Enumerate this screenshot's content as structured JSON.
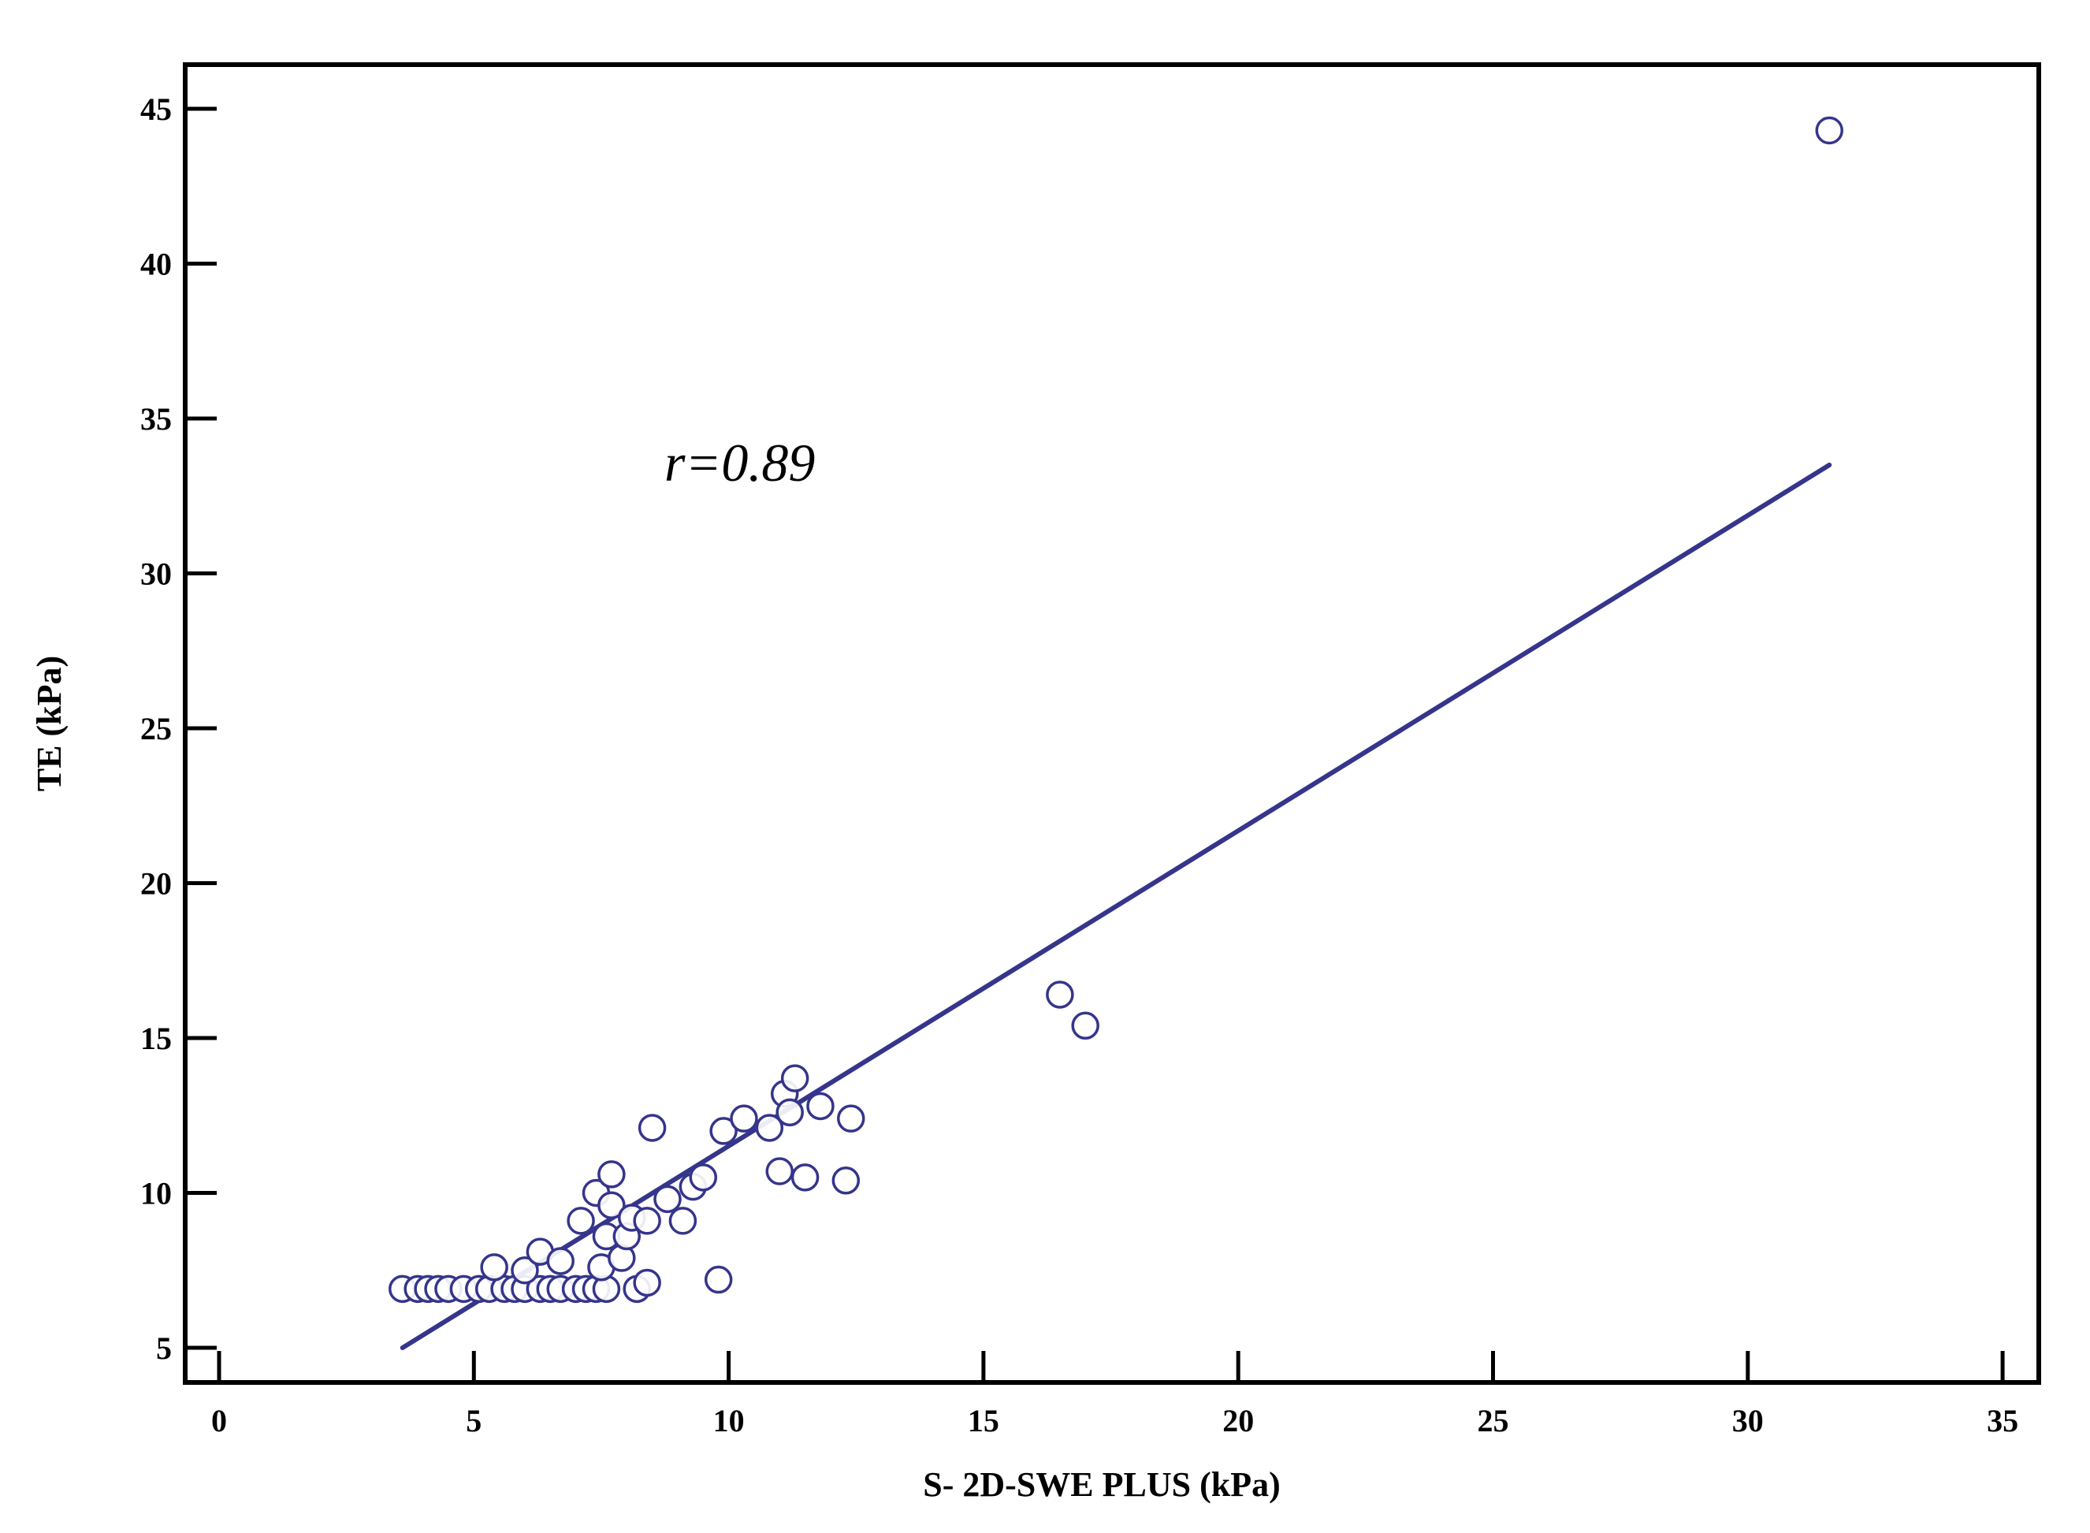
{
  "chart_data": {
    "type": "scatter",
    "title": "",
    "xlabel": "S- 2D-SWE PLUS (kPa)",
    "ylabel": "TE (kPa)",
    "xlim": [
      0,
      35
    ],
    "ylim": [
      5,
      45
    ],
    "xticks": [
      "0",
      "5",
      "10",
      "15",
      "20",
      "25",
      "30",
      "35"
    ],
    "yticks": [
      "5",
      "10",
      "15",
      "20",
      "25",
      "30",
      "35",
      "40",
      "45"
    ],
    "annotation": "r=0.89",
    "grid": false,
    "colors": {
      "marker": "#35358c",
      "line": "#35358c",
      "axis": "#000000"
    },
    "points": [
      {
        "x": 3.6,
        "y": 6.9
      },
      {
        "x": 3.9,
        "y": 6.9
      },
      {
        "x": 4.1,
        "y": 6.9
      },
      {
        "x": 4.3,
        "y": 6.9
      },
      {
        "x": 4.5,
        "y": 6.9
      },
      {
        "x": 4.8,
        "y": 6.9
      },
      {
        "x": 5.1,
        "y": 6.9
      },
      {
        "x": 5.3,
        "y": 6.9
      },
      {
        "x": 5.6,
        "y": 6.9
      },
      {
        "x": 5.8,
        "y": 6.9
      },
      {
        "x": 6.0,
        "y": 6.9
      },
      {
        "x": 6.3,
        "y": 6.9
      },
      {
        "x": 6.5,
        "y": 6.9
      },
      {
        "x": 6.7,
        "y": 6.9
      },
      {
        "x": 7.0,
        "y": 6.9
      },
      {
        "x": 7.2,
        "y": 6.9
      },
      {
        "x": 7.4,
        "y": 6.9
      },
      {
        "x": 7.6,
        "y": 6.9
      },
      {
        "x": 8.2,
        "y": 6.9
      },
      {
        "x": 8.4,
        "y": 7.1
      },
      {
        "x": 5.4,
        "y": 7.6
      },
      {
        "x": 6.0,
        "y": 7.5
      },
      {
        "x": 6.3,
        "y": 8.1
      },
      {
        "x": 6.7,
        "y": 7.8
      },
      {
        "x": 7.1,
        "y": 9.1
      },
      {
        "x": 7.4,
        "y": 10.0
      },
      {
        "x": 7.5,
        "y": 7.6
      },
      {
        "x": 7.6,
        "y": 8.6
      },
      {
        "x": 7.7,
        "y": 10.6
      },
      {
        "x": 7.7,
        "y": 9.6
      },
      {
        "x": 7.9,
        "y": 7.9
      },
      {
        "x": 8.0,
        "y": 8.6
      },
      {
        "x": 8.1,
        "y": 9.2
      },
      {
        "x": 8.4,
        "y": 9.1
      },
      {
        "x": 8.5,
        "y": 12.1
      },
      {
        "x": 8.8,
        "y": 9.8
      },
      {
        "x": 9.1,
        "y": 9.1
      },
      {
        "x": 9.3,
        "y": 10.2
      },
      {
        "x": 9.5,
        "y": 10.5
      },
      {
        "x": 9.8,
        "y": 7.2
      },
      {
        "x": 9.9,
        "y": 12.0
      },
      {
        "x": 10.3,
        "y": 12.4
      },
      {
        "x": 10.8,
        "y": 12.1
      },
      {
        "x": 11.0,
        "y": 10.7
      },
      {
        "x": 11.1,
        "y": 13.2
      },
      {
        "x": 11.2,
        "y": 12.6
      },
      {
        "x": 11.3,
        "y": 13.7
      },
      {
        "x": 11.5,
        "y": 10.5
      },
      {
        "x": 11.8,
        "y": 12.8
      },
      {
        "x": 12.3,
        "y": 10.4
      },
      {
        "x": 12.4,
        "y": 12.4
      },
      {
        "x": 16.5,
        "y": 16.4
      },
      {
        "x": 17.0,
        "y": 15.4
      },
      {
        "x": 31.6,
        "y": 44.3
      }
    ],
    "fit_line": {
      "x": [
        3.6,
        31.6
      ],
      "y": [
        5.0,
        33.5
      ]
    }
  }
}
